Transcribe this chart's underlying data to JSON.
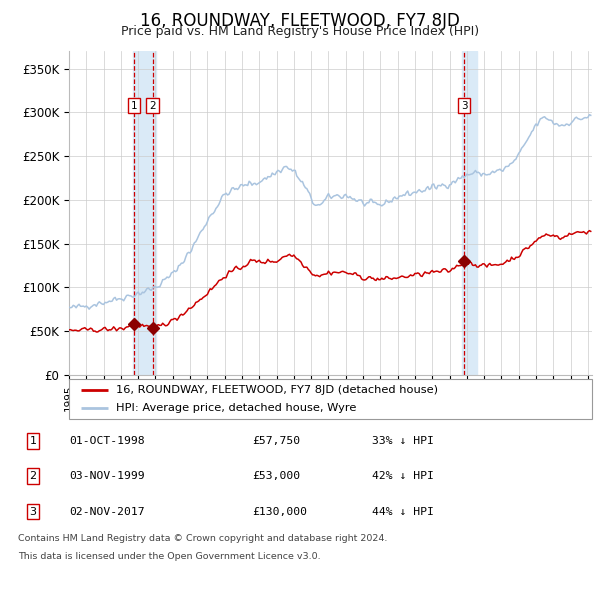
{
  "title": "16, ROUNDWAY, FLEETWOOD, FY7 8JD",
  "subtitle": "Price paid vs. HM Land Registry's House Price Index (HPI)",
  "ylim": [
    0,
    370000
  ],
  "yticks": [
    0,
    50000,
    100000,
    150000,
    200000,
    250000,
    300000,
    350000
  ],
  "ytick_labels": [
    "£0",
    "£50K",
    "£100K",
    "£150K",
    "£200K",
    "£250K",
    "£300K",
    "£350K"
  ],
  "hpi_color": "#aac4df",
  "property_color": "#cc0000",
  "sale_marker_color": "#8b0000",
  "vline_color": "#cc0000",
  "vband_color": "#daeaf7",
  "grid_color": "#cccccc",
  "bg_color": "#ffffff",
  "sale1_date": "1998-10-01",
  "sale1_price": 57750,
  "sale2_date": "1999-11-03",
  "sale2_price": 53000,
  "sale3_date": "2017-11-02",
  "sale3_price": 130000,
  "legend_property": "16, ROUNDWAY, FLEETWOOD, FY7 8JD (detached house)",
  "legend_hpi": "HPI: Average price, detached house, Wyre",
  "footer1": "Contains HM Land Registry data © Crown copyright and database right 2024.",
  "footer2": "This data is licensed under the Open Government Licence v3.0.",
  "table_rows": [
    {
      "num": "1",
      "date": "01-OCT-1998",
      "price": "£57,750",
      "pct": "33% ↓ HPI"
    },
    {
      "num": "2",
      "date": "03-NOV-1999",
      "price": "£53,000",
      "pct": "42% ↓ HPI"
    },
    {
      "num": "3",
      "date": "02-NOV-2017",
      "price": "£130,000",
      "pct": "44% ↓ HPI"
    }
  ]
}
